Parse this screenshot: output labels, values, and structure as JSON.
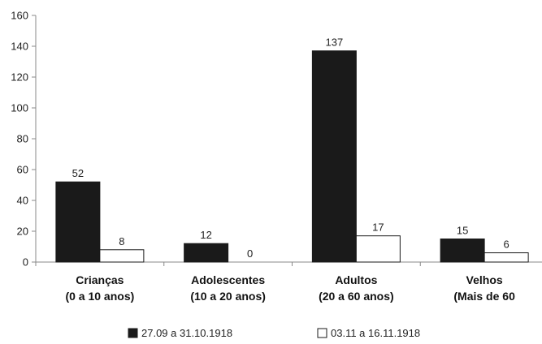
{
  "chart_data": {
    "type": "bar",
    "title": "",
    "xlabel": "",
    "ylabel": "",
    "ylim": [
      0,
      160
    ],
    "yticks": [
      0,
      20,
      40,
      60,
      80,
      100,
      120,
      140,
      160
    ],
    "grid": false,
    "legend_position": "bottom",
    "categories": [
      [
        "Crianças",
        "(0 a 10 anos)"
      ],
      [
        "Adolescentes",
        "(10 a 20 anos)"
      ],
      [
        "Adultos",
        "(20 a 60 anos)"
      ],
      [
        "Velhos",
        "(Mais de 60"
      ]
    ],
    "series": [
      {
        "name": "27.09 a 31.10.1918",
        "values": [
          52,
          12,
          137,
          15
        ],
        "color": "#1a1a1a"
      },
      {
        "name": "03.11 a 16.11.1918",
        "values": [
          8,
          0,
          17,
          6
        ],
        "color": "#ffffff"
      }
    ]
  }
}
